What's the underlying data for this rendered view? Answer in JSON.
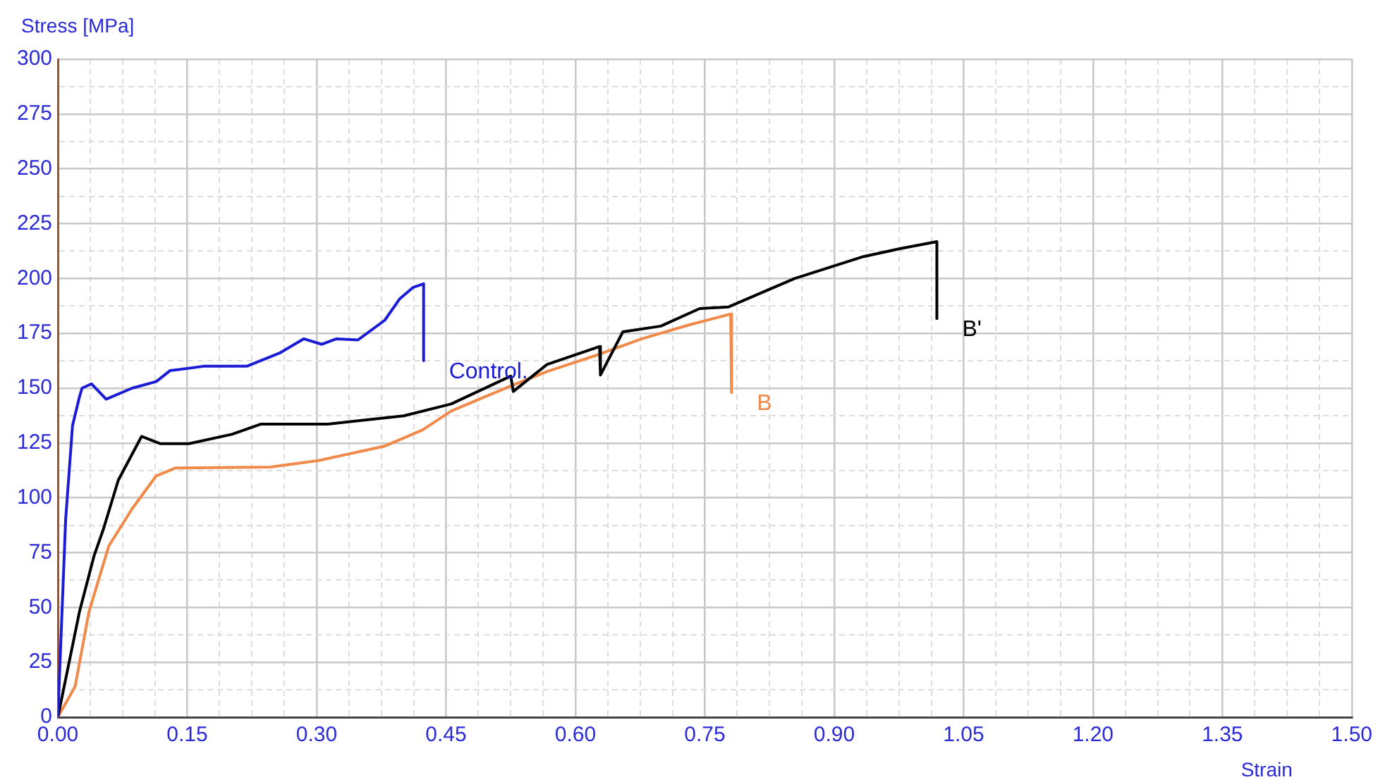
{
  "chart_data": {
    "type": "line",
    "xlabel": "Strain",
    "ylabel": "Stress [MPa]",
    "marker": "none",
    "grid": true,
    "legend": false,
    "xlim": [
      0,
      1.5
    ],
    "ylim": [
      0,
      300
    ],
    "xticks": [
      {
        "value": 0,
        "label": "0.00"
      },
      {
        "value": 0.0375,
        "label": null
      },
      {
        "value": 0.075,
        "label": null
      },
      {
        "value": 0.1125,
        "label": null
      },
      {
        "value": 0.15,
        "label": "0.15"
      },
      {
        "value": 0.1875,
        "label": null
      },
      {
        "value": 0.225,
        "label": null
      },
      {
        "value": 0.2625,
        "label": null
      },
      {
        "value": 0.3,
        "label": "0.30"
      },
      {
        "value": 0.3375,
        "label": null
      },
      {
        "value": 0.375,
        "label": null
      },
      {
        "value": 0.4125,
        "label": null
      },
      {
        "value": 0.45,
        "label": "0.45"
      },
      {
        "value": 0.4875,
        "label": null
      },
      {
        "value": 0.525,
        "label": null
      },
      {
        "value": 0.5625,
        "label": null
      },
      {
        "value": 0.6,
        "label": "0.60"
      },
      {
        "value": 0.6375,
        "label": null
      },
      {
        "value": 0.675,
        "label": null
      },
      {
        "value": 0.7125,
        "label": null
      },
      {
        "value": 0.75,
        "label": "0.75"
      },
      {
        "value": 0.7875,
        "label": null
      },
      {
        "value": 0.825,
        "label": null
      },
      {
        "value": 0.8625,
        "label": null
      },
      {
        "value": 0.9,
        "label": "0.90"
      },
      {
        "value": 0.9375,
        "label": null
      },
      {
        "value": 0.975,
        "label": null
      },
      {
        "value": 1.0125,
        "label": null
      },
      {
        "value": 1.05,
        "label": "1.05"
      },
      {
        "value": 1.0875,
        "label": null
      },
      {
        "value": 1.125,
        "label": null
      },
      {
        "value": 1.1625,
        "label": null
      },
      {
        "value": 1.2,
        "label": "1.20"
      },
      {
        "value": 1.2375,
        "label": null
      },
      {
        "value": 1.275,
        "label": null
      },
      {
        "value": 1.3125,
        "label": null
      },
      {
        "value": 1.35,
        "label": "1.35"
      },
      {
        "value": 1.3875,
        "label": null
      },
      {
        "value": 1.425,
        "label": null
      },
      {
        "value": 1.4625,
        "label": null
      },
      {
        "value": 1.5,
        "label": "1.50"
      }
    ],
    "yticks": [
      0,
      {
        "value": 12.5,
        "label": null
      },
      25,
      {
        "value": 37.5,
        "label": null
      },
      50,
      {
        "value": 62.5,
        "label": null
      },
      75,
      {
        "value": 87.5,
        "label": null
      },
      100,
      {
        "value": 112.5,
        "label": null
      },
      125,
      {
        "value": 137.5,
        "label": null
      },
      150,
      {
        "value": 162.5,
        "label": null
      },
      175,
      {
        "value": 187.5,
        "label": null
      },
      200,
      {
        "value": 212.5,
        "label": null
      },
      225,
      {
        "value": 237.5,
        "label": null
      },
      250,
      {
        "value": 262.5,
        "label": null
      },
      275,
      {
        "value": 287.5,
        "label": null
      },
      300
    ],
    "series": [
      {
        "name": "Control.",
        "color": "#1c1cd4",
        "x": [
          0,
          0.009,
          0.017,
          0.025,
          0.028,
          0.039,
          0.056,
          0.086,
          0.114,
          0.13,
          0.169,
          0.219,
          0.257,
          0.285,
          0.306,
          0.323,
          0.348,
          0.379,
          0.396,
          0.412,
          0.424,
          0.424
        ],
        "values": [
          0,
          90,
          133,
          146,
          150,
          152,
          145,
          150,
          153,
          158,
          160,
          160,
          166,
          172.5,
          170,
          172.5,
          172,
          181,
          190.6,
          196,
          197.6,
          162.5
        ]
      },
      {
        "name": "B'",
        "color": "#000000",
        "x": [
          0,
          0.025,
          0.042,
          0.053,
          0.07,
          0.097,
          0.119,
          0.152,
          0.202,
          0.235,
          0.313,
          0.401,
          0.456,
          0.525,
          0.528,
          0.567,
          0.628,
          0.629,
          0.655,
          0.699,
          0.744,
          0.777,
          0.854,
          0.932,
          0.976,
          1.019,
          1.019
        ],
        "values": [
          0,
          48,
          73.6,
          86,
          108,
          128,
          124.7,
          124.7,
          129,
          133.6,
          133.6,
          137.4,
          142.8,
          155.5,
          148.5,
          160.8,
          169,
          156,
          175.7,
          178.3,
          186.3,
          187,
          200,
          209.8,
          213.6,
          216.8,
          181.7
        ]
      },
      {
        "name": "B",
        "color": "#f08a4b",
        "x": [
          0,
          0.02,
          0.036,
          0.059,
          0.086,
          0.114,
          0.136,
          0.246,
          0.302,
          0.379,
          0.423,
          0.456,
          0.525,
          0.567,
          0.628,
          0.677,
          0.733,
          0.78,
          0.781
        ],
        "values": [
          0,
          14,
          48,
          78,
          95,
          110,
          113.6,
          114,
          117,
          123.6,
          131,
          139.6,
          151,
          157.6,
          165.5,
          172.5,
          179,
          183.8,
          148
        ]
      }
    ]
  }
}
